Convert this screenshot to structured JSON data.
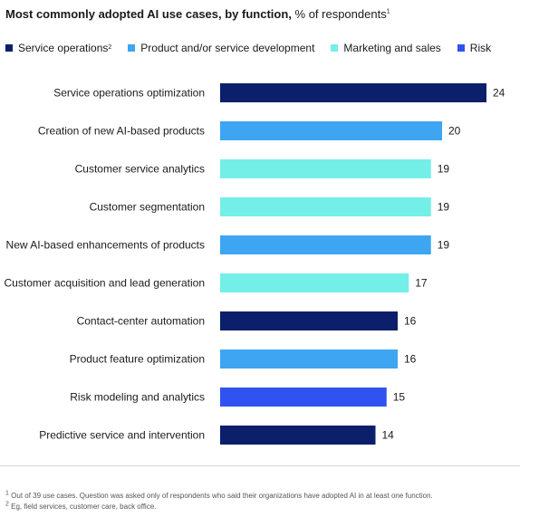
{
  "title_bold": "Most commonly adopted AI use cases, by function,",
  "title_rest": " % of respondents",
  "title_sup": "1",
  "legend": [
    {
      "label": "Service operations",
      "sup": "2",
      "color": "#0b1f6b"
    },
    {
      "label": "Product and/or service development",
      "sup": "",
      "color": "#3ea5f2"
    },
    {
      "label": "Marketing and sales",
      "sup": "",
      "color": "#74efe8"
    },
    {
      "label": "Risk",
      "sup": "",
      "color": "#2f52f0"
    }
  ],
  "chart_data": {
    "type": "bar",
    "orientation": "horizontal",
    "categories": [
      "Service operations optimization",
      "Creation of new AI-based products",
      "Customer service analytics",
      "Customer segmentation",
      "New AI-based enhancements of products",
      "Customer acquisition and lead generation",
      "Contact-center automation",
      "Product feature optimization",
      "Risk modeling and analytics",
      "Predictive service and intervention"
    ],
    "values": [
      24,
      20,
      19,
      19,
      19,
      17,
      16,
      16,
      15,
      14
    ],
    "functions": [
      "Service operations",
      "Product and/or service development",
      "Marketing and sales",
      "Marketing and sales",
      "Product and/or service development",
      "Marketing and sales",
      "Service operations",
      "Product and/or service development",
      "Risk",
      "Service operations"
    ],
    "xlim": [
      0,
      24
    ],
    "grid": false,
    "legend_position": "top-left"
  },
  "footnotes": [
    {
      "sup": "1",
      "text": "Out of 39 use cases. Question was asked only of respondents who said their organizations have adopted AI in at least one function."
    },
    {
      "sup": "2",
      "text": "Eg, field services, customer care, back office."
    }
  ]
}
